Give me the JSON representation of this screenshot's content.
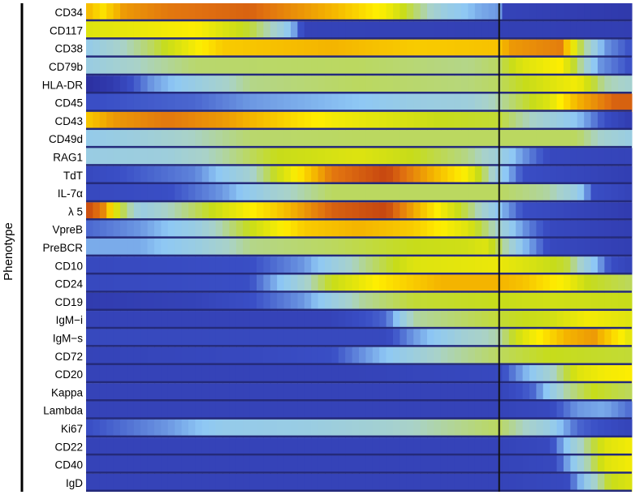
{
  "chart_data": {
    "type": "heatmap",
    "title": "",
    "ylabel": "Phenotype",
    "xlabel": "",
    "rows": [
      "CD34",
      "CD117",
      "CD38",
      "CD79b",
      "HLA-DR",
      "CD45",
      "CD43",
      "CD49d",
      "RAG1",
      "TdT",
      "IL-7α",
      "λ 5",
      "VpreB",
      "PreBCR",
      "CD10",
      "CD24",
      "CD19",
      "IgM−i",
      "IgM−s",
      "CD72",
      "CD20",
      "Kappa",
      "Lambda",
      "Ki67",
      "CD22",
      "CD40",
      "IgD"
    ],
    "x_range": [
      0,
      1
    ],
    "divider_x": 0.757,
    "value_range": [
      0,
      1
    ],
    "colormap": [
      "#2b2fa0",
      "#3a4fc6",
      "#8ec8f5",
      "#a9d2c8",
      "#c7dc1a",
      "#ffee00",
      "#f4b400",
      "#e07010",
      "#b42a10"
    ],
    "profiles": {
      "CD34": [
        [
          0,
          0.75
        ],
        [
          0.03,
          0.65
        ],
        [
          0.07,
          0.8
        ],
        [
          0.15,
          0.86
        ],
        [
          0.3,
          0.9
        ],
        [
          0.45,
          0.75
        ],
        [
          0.55,
          0.6
        ],
        [
          0.6,
          0.45
        ],
        [
          0.66,
          0.3
        ],
        [
          0.72,
          0.22
        ],
        [
          0.757,
          0.2
        ],
        [
          0.76,
          0.08
        ],
        [
          1,
          0.04
        ]
      ],
      "CD117": [
        [
          0,
          0.55
        ],
        [
          0.1,
          0.58
        ],
        [
          0.2,
          0.62
        ],
        [
          0.3,
          0.48
        ],
        [
          0.35,
          0.35
        ],
        [
          0.38,
          0.22
        ],
        [
          0.4,
          0.08
        ],
        [
          1,
          0.06
        ]
      ],
      "CD38": [
        [
          0,
          0.28
        ],
        [
          0.05,
          0.35
        ],
        [
          0.12,
          0.45
        ],
        [
          0.25,
          0.7
        ],
        [
          0.45,
          0.75
        ],
        [
          0.6,
          0.7
        ],
        [
          0.757,
          0.72
        ],
        [
          0.78,
          0.8
        ],
        [
          0.87,
          0.85
        ],
        [
          0.9,
          0.5
        ],
        [
          0.95,
          0.2
        ],
        [
          1,
          0.12
        ]
      ],
      "CD79b": [
        [
          0,
          0.3
        ],
        [
          0.1,
          0.38
        ],
        [
          0.2,
          0.44
        ],
        [
          0.5,
          0.45
        ],
        [
          0.7,
          0.42
        ],
        [
          0.757,
          0.45
        ],
        [
          0.8,
          0.55
        ],
        [
          0.87,
          0.62
        ],
        [
          0.9,
          0.45
        ],
        [
          0.94,
          0.2
        ],
        [
          1,
          0.12
        ]
      ],
      "HLA-DR": [
        [
          0,
          0.0
        ],
        [
          0.05,
          0.05
        ],
        [
          0.12,
          0.2
        ],
        [
          0.2,
          0.3
        ],
        [
          0.3,
          0.42
        ],
        [
          0.5,
          0.45
        ],
        [
          0.7,
          0.43
        ],
        [
          0.757,
          0.45
        ],
        [
          0.85,
          0.55
        ],
        [
          0.9,
          0.6
        ],
        [
          0.95,
          0.4
        ],
        [
          1,
          0.35
        ]
      ],
      "CD45": [
        [
          0,
          0.12
        ],
        [
          0.2,
          0.15
        ],
        [
          0.3,
          0.2
        ],
        [
          0.5,
          0.25
        ],
        [
          0.6,
          0.3
        ],
        [
          0.7,
          0.32
        ],
        [
          0.757,
          0.4
        ],
        [
          0.85,
          0.55
        ],
        [
          0.9,
          0.75
        ],
        [
          0.97,
          0.9
        ],
        [
          1,
          0.9
        ]
      ],
      "CD43": [
        [
          0,
          0.7
        ],
        [
          0.05,
          0.8
        ],
        [
          0.15,
          0.86
        ],
        [
          0.25,
          0.8
        ],
        [
          0.35,
          0.7
        ],
        [
          0.45,
          0.6
        ],
        [
          0.55,
          0.55
        ],
        [
          0.65,
          0.5
        ],
        [
          0.757,
          0.48
        ],
        [
          0.8,
          0.4
        ],
        [
          0.9,
          0.25
        ],
        [
          0.95,
          0.12
        ],
        [
          1,
          0.05
        ]
      ],
      "CD49d": [
        [
          0,
          0.28
        ],
        [
          0.1,
          0.32
        ],
        [
          0.2,
          0.38
        ],
        [
          0.3,
          0.44
        ],
        [
          0.5,
          0.45
        ],
        [
          0.757,
          0.45
        ],
        [
          0.9,
          0.45
        ],
        [
          0.95,
          0.35
        ],
        [
          1,
          0.3
        ]
      ],
      "RAG1": [
        [
          0,
          0.3
        ],
        [
          0.15,
          0.32
        ],
        [
          0.25,
          0.4
        ],
        [
          0.35,
          0.5
        ],
        [
          0.5,
          0.55
        ],
        [
          0.6,
          0.5
        ],
        [
          0.7,
          0.42
        ],
        [
          0.757,
          0.32
        ],
        [
          0.8,
          0.2
        ],
        [
          0.85,
          0.1
        ],
        [
          1,
          0.08
        ]
      ],
      "TdT": [
        [
          0,
          0.1
        ],
        [
          0.2,
          0.18
        ],
        [
          0.3,
          0.35
        ],
        [
          0.38,
          0.6
        ],
        [
          0.45,
          0.86
        ],
        [
          0.55,
          0.95
        ],
        [
          0.7,
          0.6
        ],
        [
          0.757,
          0.3
        ],
        [
          0.8,
          0.12
        ],
        [
          1,
          0.06
        ]
      ],
      "IL-7α": [
        [
          0,
          0.1
        ],
        [
          0.15,
          0.12
        ],
        [
          0.25,
          0.2
        ],
        [
          0.35,
          0.35
        ],
        [
          0.45,
          0.45
        ],
        [
          0.6,
          0.45
        ],
        [
          0.757,
          0.45
        ],
        [
          0.85,
          0.4
        ],
        [
          0.9,
          0.3
        ],
        [
          0.93,
          0.12
        ],
        [
          1,
          0.08
        ]
      ],
      "λ 5": [
        [
          0,
          0.95
        ],
        [
          0.03,
          0.85
        ],
        [
          0.06,
          0.5
        ],
        [
          0.1,
          0.3
        ],
        [
          0.2,
          0.45
        ],
        [
          0.35,
          0.7
        ],
        [
          0.45,
          0.9
        ],
        [
          0.55,
          0.95
        ],
        [
          0.65,
          0.6
        ],
        [
          0.7,
          0.45
        ],
        [
          0.757,
          0.25
        ],
        [
          0.8,
          0.12
        ],
        [
          1,
          0.05
        ]
      ],
      "VpreB": [
        [
          0,
          0.15
        ],
        [
          0.1,
          0.2
        ],
        [
          0.2,
          0.3
        ],
        [
          0.3,
          0.5
        ],
        [
          0.4,
          0.7
        ],
        [
          0.5,
          0.75
        ],
        [
          0.6,
          0.7
        ],
        [
          0.7,
          0.55
        ],
        [
          0.757,
          0.35
        ],
        [
          0.8,
          0.2
        ],
        [
          0.85,
          0.1
        ],
        [
          1,
          0.06
        ]
      ],
      "PreBCR": [
        [
          0,
          0.22
        ],
        [
          0.1,
          0.22
        ],
        [
          0.2,
          0.3
        ],
        [
          0.3,
          0.42
        ],
        [
          0.45,
          0.45
        ],
        [
          0.6,
          0.5
        ],
        [
          0.7,
          0.52
        ],
        [
          0.73,
          0.55
        ],
        [
          0.757,
          0.45
        ],
        [
          0.8,
          0.25
        ],
        [
          0.85,
          0.1
        ],
        [
          1,
          0.06
        ]
      ],
      "CD10": [
        [
          0,
          0.1
        ],
        [
          0.3,
          0.12
        ],
        [
          0.4,
          0.2
        ],
        [
          0.5,
          0.4
        ],
        [
          0.6,
          0.55
        ],
        [
          0.757,
          0.58
        ],
        [
          0.8,
          0.55
        ],
        [
          0.88,
          0.48
        ],
        [
          0.92,
          0.3
        ],
        [
          0.96,
          0.12
        ],
        [
          1,
          0.08
        ]
      ],
      "CD24": [
        [
          0,
          0.1
        ],
        [
          0.3,
          0.12
        ],
        [
          0.38,
          0.3
        ],
        [
          0.45,
          0.5
        ],
        [
          0.55,
          0.65
        ],
        [
          0.65,
          0.75
        ],
        [
          0.757,
          0.75
        ],
        [
          0.8,
          0.72
        ],
        [
          0.88,
          0.6
        ],
        [
          0.92,
          0.5
        ],
        [
          1,
          0.45
        ]
      ],
      "CD19": [
        [
          0,
          0.05
        ],
        [
          0.2,
          0.08
        ],
        [
          0.3,
          0.12
        ],
        [
          0.4,
          0.2
        ],
        [
          0.5,
          0.4
        ],
        [
          0.6,
          0.48
        ],
        [
          0.757,
          0.5
        ],
        [
          0.85,
          0.52
        ],
        [
          1,
          0.5
        ]
      ],
      "IgM−i": [
        [
          0,
          0.08
        ],
        [
          0.3,
          0.08
        ],
        [
          0.45,
          0.08
        ],
        [
          0.55,
          0.15
        ],
        [
          0.6,
          0.4
        ],
        [
          0.7,
          0.45
        ],
        [
          0.757,
          0.48
        ],
        [
          0.85,
          0.52
        ],
        [
          0.92,
          0.6
        ],
        [
          1,
          0.55
        ]
      ],
      "IgM−s": [
        [
          0,
          0.1
        ],
        [
          0.4,
          0.1
        ],
        [
          0.55,
          0.1
        ],
        [
          0.6,
          0.2
        ],
        [
          0.7,
          0.35
        ],
        [
          0.757,
          0.4
        ],
        [
          0.8,
          0.55
        ],
        [
          0.88,
          0.75
        ],
        [
          0.93,
          0.8
        ],
        [
          1,
          0.55
        ]
      ],
      "CD72": [
        [
          0,
          0.08
        ],
        [
          0.3,
          0.1
        ],
        [
          0.45,
          0.12
        ],
        [
          0.55,
          0.25
        ],
        [
          0.65,
          0.38
        ],
        [
          0.757,
          0.45
        ],
        [
          0.85,
          0.5
        ],
        [
          1,
          0.48
        ]
      ],
      "CD20": [
        [
          0,
          0.08
        ],
        [
          0.5,
          0.08
        ],
        [
          0.757,
          0.1
        ],
        [
          0.85,
          0.35
        ],
        [
          0.9,
          0.55
        ],
        [
          0.95,
          0.6
        ],
        [
          1,
          0.62
        ]
      ],
      "Kappa": [
        [
          0,
          0.08
        ],
        [
          0.6,
          0.08
        ],
        [
          0.757,
          0.08
        ],
        [
          0.82,
          0.15
        ],
        [
          0.88,
          0.4
        ],
        [
          0.93,
          0.5
        ],
        [
          1,
          0.45
        ]
      ],
      "Lambda": [
        [
          0,
          0.08
        ],
        [
          0.6,
          0.08
        ],
        [
          0.757,
          0.08
        ],
        [
          0.85,
          0.1
        ],
        [
          0.9,
          0.2
        ],
        [
          0.95,
          0.22
        ],
        [
          1,
          0.15
        ]
      ],
      "Ki67": [
        [
          0,
          0.12
        ],
        [
          0.15,
          0.2
        ],
        [
          0.25,
          0.28
        ],
        [
          0.4,
          0.3
        ],
        [
          0.55,
          0.35
        ],
        [
          0.65,
          0.4
        ],
        [
          0.757,
          0.45
        ],
        [
          0.85,
          0.3
        ],
        [
          0.9,
          0.15
        ],
        [
          1,
          0.08
        ]
      ],
      "CD22": [
        [
          0,
          0.08
        ],
        [
          0.6,
          0.08
        ],
        [
          0.757,
          0.08
        ],
        [
          0.85,
          0.1
        ],
        [
          0.9,
          0.35
        ],
        [
          0.95,
          0.55
        ],
        [
          1,
          0.6
        ]
      ],
      "CD40": [
        [
          0,
          0.08
        ],
        [
          0.6,
          0.08
        ],
        [
          0.757,
          0.08
        ],
        [
          0.86,
          0.1
        ],
        [
          0.9,
          0.3
        ],
        [
          0.95,
          0.55
        ],
        [
          1,
          0.6
        ]
      ],
      "IgD": [
        [
          0,
          0.08
        ],
        [
          0.6,
          0.08
        ],
        [
          0.757,
          0.08
        ],
        [
          0.88,
          0.1
        ],
        [
          0.92,
          0.3
        ],
        [
          0.96,
          0.5
        ],
        [
          1,
          0.55
        ]
      ]
    }
  }
}
